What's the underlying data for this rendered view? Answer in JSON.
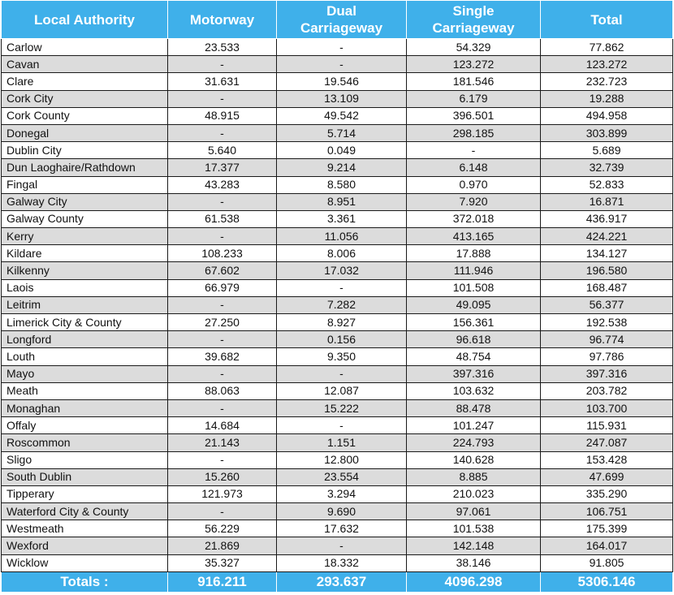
{
  "colors": {
    "header_bg": "#3fb0ea",
    "header_text": "#ffffff",
    "stripe": "#dcdcdc"
  },
  "header": {
    "local_authority": "Local Authority",
    "motorway": "Motorway",
    "dual_line1": "Dual",
    "dual_line2": "Carriageway",
    "single_line1": "Single",
    "single_line2": "Carriageway",
    "total": "Total"
  },
  "rows": [
    [
      "Carlow",
      "23.533",
      "-",
      "54.329",
      "77.862"
    ],
    [
      "Cavan",
      "-",
      "-",
      "123.272",
      "123.272"
    ],
    [
      "Clare",
      "31.631",
      "19.546",
      "181.546",
      "232.723"
    ],
    [
      "Cork City",
      "-",
      "13.109",
      "6.179",
      "19.288"
    ],
    [
      "Cork County",
      "48.915",
      "49.542",
      "396.501",
      "494.958"
    ],
    [
      "Donegal",
      "-",
      "5.714",
      "298.185",
      "303.899"
    ],
    [
      "Dublin City",
      "5.640",
      "0.049",
      "-",
      "5.689"
    ],
    [
      "Dun Laoghaire/Rathdown",
      "17.377",
      "9.214",
      "6.148",
      "32.739"
    ],
    [
      "Fingal",
      "43.283",
      "8.580",
      "0.970",
      "52.833"
    ],
    [
      "Galway City",
      "-",
      "8.951",
      "7.920",
      "16.871"
    ],
    [
      "Galway County",
      "61.538",
      "3.361",
      "372.018",
      "436.917"
    ],
    [
      "Kerry",
      "-",
      "11.056",
      "413.165",
      "424.221"
    ],
    [
      "Kildare",
      "108.233",
      "8.006",
      "17.888",
      "134.127"
    ],
    [
      "Kilkenny",
      "67.602",
      "17.032",
      "111.946",
      "196.580"
    ],
    [
      "Laois",
      "66.979",
      "-",
      "101.508",
      "168.487"
    ],
    [
      "Leitrim",
      "-",
      "7.282",
      "49.095",
      "56.377"
    ],
    [
      "Limerick City & County",
      "27.250",
      "8.927",
      "156.361",
      "192.538"
    ],
    [
      "Longford",
      "-",
      "0.156",
      "96.618",
      "96.774"
    ],
    [
      "Louth",
      "39.682",
      "9.350",
      "48.754",
      "97.786"
    ],
    [
      "Mayo",
      "-",
      "-",
      "397.316",
      "397.316"
    ],
    [
      "Meath",
      "88.063",
      "12.087",
      "103.632",
      "203.782"
    ],
    [
      "Monaghan",
      "-",
      "15.222",
      "88.478",
      "103.700"
    ],
    [
      "Offaly",
      "14.684",
      "-",
      "101.247",
      "115.931"
    ],
    [
      "Roscommon",
      "21.143",
      "1.151",
      "224.793",
      "247.087"
    ],
    [
      "Sligo",
      "-",
      "12.800",
      "140.628",
      "153.428"
    ],
    [
      "South Dublin",
      "15.260",
      "23.554",
      "8.885",
      "47.699"
    ],
    [
      "Tipperary",
      "121.973",
      "3.294",
      "210.023",
      "335.290"
    ],
    [
      "Waterford City & County",
      "-",
      "9.690",
      "97.061",
      "106.751"
    ],
    [
      "Westmeath",
      "56.229",
      "17.632",
      "101.538",
      "175.399"
    ],
    [
      "Wexford",
      "21.869",
      "-",
      "142.148",
      "164.017"
    ],
    [
      "Wicklow",
      "35.327",
      "18.332",
      "38.146",
      "91.805"
    ]
  ],
  "totals": {
    "label": "Totals :",
    "motorway": "916.211",
    "dual": "293.637",
    "single": "4096.298",
    "total": "5306.146"
  }
}
